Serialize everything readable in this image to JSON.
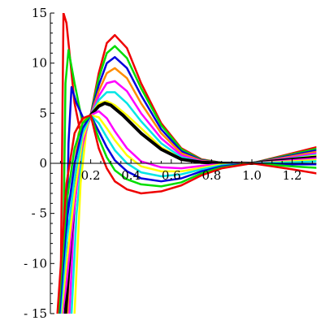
{
  "chart_data": {
    "type": "line",
    "title": "",
    "xlabel": "",
    "ylabel": "",
    "xlim": [
      0.0,
      1.32
    ],
    "ylim": [
      -15,
      15
    ],
    "grid": false,
    "legend": "none",
    "x_ticks": [
      {
        "value": 0.2,
        "label": "0.2"
      },
      {
        "value": 0.4,
        "label": "0.4"
      },
      {
        "value": 0.6,
        "label": "0.6"
      },
      {
        "value": 0.8,
        "label": "0.8"
      },
      {
        "value": 1.0,
        "label": "1.0"
      },
      {
        "value": 1.2,
        "label": "1.2"
      }
    ],
    "y_ticks": [
      {
        "value": 15,
        "label": "15"
      },
      {
        "value": 10,
        "label": "10"
      },
      {
        "value": 5,
        "label": "5"
      },
      {
        "value": 0,
        "label": "0"
      },
      {
        "value": -5,
        "label": "- 5"
      },
      {
        "value": -10,
        "label": "- 10"
      },
      {
        "value": -15,
        "label": "- 15"
      }
    ],
    "series": [
      {
        "color": "#ee0000",
        "values": [
          [
            0.05,
            -15.0
          ],
          [
            0.065,
            15.0
          ],
          [
            0.08,
            14.0
          ],
          [
            0.12,
            6.0
          ],
          [
            0.16,
            2.0
          ],
          [
            0.2,
            4.8
          ],
          [
            0.24,
            9.0
          ],
          [
            0.28,
            12.0
          ],
          [
            0.32,
            12.8
          ],
          [
            0.38,
            11.5
          ],
          [
            0.45,
            8.0
          ],
          [
            0.55,
            4.0
          ],
          [
            0.65,
            1.5
          ],
          [
            0.75,
            0.4
          ],
          [
            0.85,
            0.05
          ],
          [
            1.0,
            0.0
          ],
          [
            1.1,
            0.5
          ],
          [
            1.2,
            1.0
          ],
          [
            1.32,
            1.6
          ]
        ]
      },
      {
        "color": "#00dd00",
        "values": [
          [
            0.06,
            -15.0
          ],
          [
            0.075,
            8.0
          ],
          [
            0.09,
            11.3
          ],
          [
            0.12,
            8.0
          ],
          [
            0.16,
            4.0
          ],
          [
            0.2,
            4.8
          ],
          [
            0.24,
            8.5
          ],
          [
            0.28,
            11.0
          ],
          [
            0.32,
            11.7
          ],
          [
            0.38,
            10.5
          ],
          [
            0.45,
            7.5
          ],
          [
            0.55,
            3.8
          ],
          [
            0.65,
            1.4
          ],
          [
            0.75,
            0.35
          ],
          [
            0.85,
            0.05
          ],
          [
            1.0,
            0.0
          ],
          [
            1.1,
            0.45
          ],
          [
            1.2,
            0.9
          ],
          [
            1.32,
            1.45
          ]
        ]
      },
      {
        "color": "#0000dd",
        "values": [
          [
            0.075,
            -15.0
          ],
          [
            0.09,
            2.0
          ],
          [
            0.105,
            7.6
          ],
          [
            0.13,
            6.0
          ],
          [
            0.17,
            4.2
          ],
          [
            0.2,
            4.8
          ],
          [
            0.24,
            7.8
          ],
          [
            0.28,
            10.0
          ],
          [
            0.32,
            10.6
          ],
          [
            0.38,
            9.5
          ],
          [
            0.45,
            6.8
          ],
          [
            0.55,
            3.4
          ],
          [
            0.65,
            1.2
          ],
          [
            0.75,
            0.3
          ],
          [
            0.85,
            0.05
          ],
          [
            1.0,
            0.0
          ],
          [
            1.1,
            0.4
          ],
          [
            1.2,
            0.8
          ],
          [
            1.32,
            1.3
          ]
        ]
      },
      {
        "color": "#ff8c00",
        "values": [
          [
            0.085,
            -15.0
          ],
          [
            0.11,
            -2.0
          ],
          [
            0.14,
            3.0
          ],
          [
            0.17,
            4.5
          ],
          [
            0.2,
            4.8
          ],
          [
            0.24,
            7.2
          ],
          [
            0.28,
            9.0
          ],
          [
            0.32,
            9.5
          ],
          [
            0.38,
            8.5
          ],
          [
            0.45,
            6.0
          ],
          [
            0.55,
            3.0
          ],
          [
            0.65,
            1.0
          ],
          [
            0.75,
            0.25
          ],
          [
            0.85,
            0.04
          ],
          [
            1.0,
            0.0
          ],
          [
            1.1,
            0.35
          ],
          [
            1.2,
            0.7
          ],
          [
            1.32,
            1.15
          ]
        ]
      },
      {
        "color": "#ff00ff",
        "values": [
          [
            0.095,
            -15.0
          ],
          [
            0.12,
            -4.0
          ],
          [
            0.15,
            2.0
          ],
          [
            0.18,
            4.3
          ],
          [
            0.2,
            4.8
          ],
          [
            0.24,
            6.7
          ],
          [
            0.28,
            8.0
          ],
          [
            0.32,
            8.2
          ],
          [
            0.38,
            7.2
          ],
          [
            0.45,
            5.0
          ],
          [
            0.55,
            2.5
          ],
          [
            0.65,
            0.8
          ],
          [
            0.75,
            0.2
          ],
          [
            0.85,
            0.03
          ],
          [
            1.0,
            0.0
          ],
          [
            1.1,
            0.3
          ],
          [
            1.2,
            0.6
          ],
          [
            1.32,
            1.0
          ]
        ]
      },
      {
        "color": "#00e5e5",
        "values": [
          [
            0.105,
            -15.0
          ],
          [
            0.13,
            -5.0
          ],
          [
            0.16,
            1.5
          ],
          [
            0.19,
            4.2
          ],
          [
            0.2,
            4.8
          ],
          [
            0.24,
            6.3
          ],
          [
            0.28,
            7.1
          ],
          [
            0.32,
            7.1
          ],
          [
            0.38,
            6.0
          ],
          [
            0.45,
            4.2
          ],
          [
            0.55,
            2.0
          ],
          [
            0.65,
            0.6
          ],
          [
            0.75,
            0.15
          ],
          [
            0.85,
            0.02
          ],
          [
            1.0,
            0.0
          ],
          [
            1.1,
            0.25
          ],
          [
            1.2,
            0.5
          ],
          [
            1.32,
            0.85
          ]
        ]
      },
      {
        "color": "#ffff00",
        "values": [
          [
            0.12,
            -15.0
          ],
          [
            0.15,
            -2.0
          ],
          [
            0.18,
            3.5
          ],
          [
            0.2,
            4.8
          ],
          [
            0.24,
            6.0
          ],
          [
            0.28,
            6.2
          ],
          [
            0.32,
            5.8
          ],
          [
            0.38,
            4.8
          ],
          [
            0.45,
            3.5
          ],
          [
            0.55,
            1.6
          ],
          [
            0.65,
            0.45
          ],
          [
            0.75,
            0.1
          ],
          [
            0.85,
            0.01
          ],
          [
            1.0,
            0.0
          ],
          [
            1.1,
            0.22
          ],
          [
            1.2,
            0.45
          ],
          [
            1.32,
            0.75
          ]
        ]
      },
      {
        "color": "#000000",
        "width": 4,
        "values": [
          [
            0.075,
            -15.0
          ],
          [
            0.1,
            -8.0
          ],
          [
            0.14,
            0.5
          ],
          [
            0.18,
            3.8
          ],
          [
            0.2,
            4.8
          ],
          [
            0.24,
            5.7
          ],
          [
            0.27,
            6.0
          ],
          [
            0.3,
            5.8
          ],
          [
            0.36,
            4.8
          ],
          [
            0.45,
            3.0
          ],
          [
            0.55,
            1.4
          ],
          [
            0.65,
            0.4
          ],
          [
            0.75,
            0.1
          ],
          [
            0.85,
            0.01
          ],
          [
            1.0,
            0.0
          ],
          [
            1.1,
            0.2
          ],
          [
            1.2,
            0.4
          ],
          [
            1.32,
            0.6
          ]
        ]
      },
      {
        "color": "#ff00ff",
        "values": [
          [
            0.06,
            -15.0
          ],
          [
            0.08,
            -12.0
          ],
          [
            0.11,
            -6.0
          ],
          [
            0.15,
            1.0
          ],
          [
            0.18,
            3.5
          ],
          [
            0.2,
            4.8
          ],
          [
            0.24,
            5.2
          ],
          [
            0.28,
            4.5
          ],
          [
            0.32,
            3.2
          ],
          [
            0.38,
            1.5
          ],
          [
            0.45,
            0.2
          ],
          [
            0.55,
            -0.4
          ],
          [
            0.65,
            -0.5
          ],
          [
            0.75,
            -0.25
          ],
          [
            0.85,
            -0.05
          ],
          [
            1.0,
            0.0
          ],
          [
            1.1,
            0.15
          ],
          [
            1.2,
            0.3
          ],
          [
            1.32,
            0.5
          ]
        ]
      },
      {
        "color": "#ffff00",
        "values": [
          [
            0.055,
            -15.0
          ],
          [
            0.08,
            -10.0
          ],
          [
            0.12,
            -3.0
          ],
          [
            0.16,
            2.5
          ],
          [
            0.2,
            4.8
          ],
          [
            0.24,
            4.6
          ],
          [
            0.28,
            3.5
          ],
          [
            0.32,
            2.3
          ],
          [
            0.38,
            0.8
          ],
          [
            0.45,
            -0.3
          ],
          [
            0.55,
            -0.8
          ],
          [
            0.65,
            -0.8
          ],
          [
            0.75,
            -0.45
          ],
          [
            0.85,
            -0.1
          ],
          [
            1.0,
            0.0
          ],
          [
            1.1,
            0.1
          ],
          [
            1.2,
            0.2
          ],
          [
            1.32,
            0.35
          ]
        ]
      },
      {
        "color": "#00e5e5",
        "values": [
          [
            0.05,
            -15.0
          ],
          [
            0.08,
            -8.0
          ],
          [
            0.12,
            -1.5
          ],
          [
            0.16,
            3.0
          ],
          [
            0.2,
            4.8
          ],
          [
            0.24,
            4.0
          ],
          [
            0.28,
            2.6
          ],
          [
            0.32,
            1.3
          ],
          [
            0.38,
            0.0
          ],
          [
            0.45,
            -0.9
          ],
          [
            0.55,
            -1.3
          ],
          [
            0.65,
            -1.1
          ],
          [
            0.75,
            -0.6
          ],
          [
            0.85,
            -0.2
          ],
          [
            1.0,
            0.0
          ],
          [
            1.1,
            0.05
          ],
          [
            1.2,
            0.1
          ],
          [
            1.32,
            0.2
          ]
        ]
      },
      {
        "color": "#0000dd",
        "values": [
          [
            0.045,
            -15.0
          ],
          [
            0.08,
            -6.0
          ],
          [
            0.12,
            0.0
          ],
          [
            0.16,
            3.5
          ],
          [
            0.2,
            4.8
          ],
          [
            0.24,
            3.2
          ],
          [
            0.28,
            1.6
          ],
          [
            0.32,
            0.3
          ],
          [
            0.38,
            -0.8
          ],
          [
            0.45,
            -1.5
          ],
          [
            0.55,
            -1.8
          ],
          [
            0.65,
            -1.5
          ],
          [
            0.75,
            -0.8
          ],
          [
            0.85,
            -0.3
          ],
          [
            1.0,
            0.0
          ],
          [
            1.1,
            -0.05
          ],
          [
            1.2,
            -0.1
          ],
          [
            1.32,
            -0.1
          ]
        ]
      },
      {
        "color": "#00dd00",
        "values": [
          [
            0.04,
            -15.0
          ],
          [
            0.08,
            -4.0
          ],
          [
            0.12,
            1.5
          ],
          [
            0.16,
            4.0
          ],
          [
            0.2,
            4.8
          ],
          [
            0.24,
            2.5
          ],
          [
            0.28,
            0.6
          ],
          [
            0.32,
            -0.7
          ],
          [
            0.38,
            -1.6
          ],
          [
            0.45,
            -2.1
          ],
          [
            0.55,
            -2.3
          ],
          [
            0.65,
            -1.9
          ],
          [
            0.75,
            -1.0
          ],
          [
            0.85,
            -0.4
          ],
          [
            1.0,
            0.0
          ],
          [
            1.1,
            -0.15
          ],
          [
            1.2,
            -0.3
          ],
          [
            1.32,
            -0.45
          ]
        ]
      },
      {
        "color": "#ee0000",
        "values": [
          [
            0.035,
            -15.0
          ],
          [
            0.08,
            -2.0
          ],
          [
            0.12,
            3.0
          ],
          [
            0.16,
            4.5
          ],
          [
            0.2,
            4.8
          ],
          [
            0.24,
            1.5
          ],
          [
            0.28,
            -0.5
          ],
          [
            0.32,
            -1.8
          ],
          [
            0.38,
            -2.6
          ],
          [
            0.45,
            -3.0
          ],
          [
            0.55,
            -2.8
          ],
          [
            0.65,
            -2.2
          ],
          [
            0.75,
            -1.2
          ],
          [
            0.85,
            -0.5
          ],
          [
            1.0,
            0.0
          ],
          [
            1.1,
            -0.3
          ],
          [
            1.2,
            -0.6
          ],
          [
            1.32,
            -1.0
          ]
        ]
      }
    ]
  }
}
